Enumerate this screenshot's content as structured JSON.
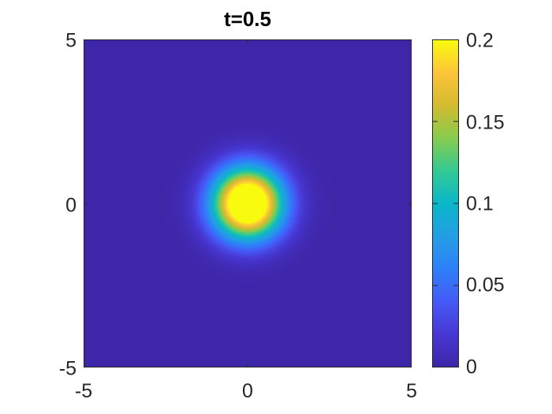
{
  "chart_data": {
    "type": "heatmap",
    "title": "t=0.5",
    "xlabel": "",
    "ylabel": "",
    "xlim": [
      -5,
      5
    ],
    "ylim": [
      -5,
      5
    ],
    "x_ticks": [
      "-5",
      "0",
      "5"
    ],
    "y_ticks": [
      "5",
      "0",
      "-5"
    ],
    "field": {
      "shape": "radial-gaussian",
      "center": [
        0,
        0
      ],
      "peak_value": 0.2,
      "sigma": 0.75
    },
    "colorbar": {
      "colormap": "parula",
      "range": [
        0,
        0.2
      ],
      "ticks": [
        "0",
        "0.05",
        "0.1",
        "0.15",
        "0.2"
      ]
    },
    "grid": false,
    "legend": "none"
  }
}
